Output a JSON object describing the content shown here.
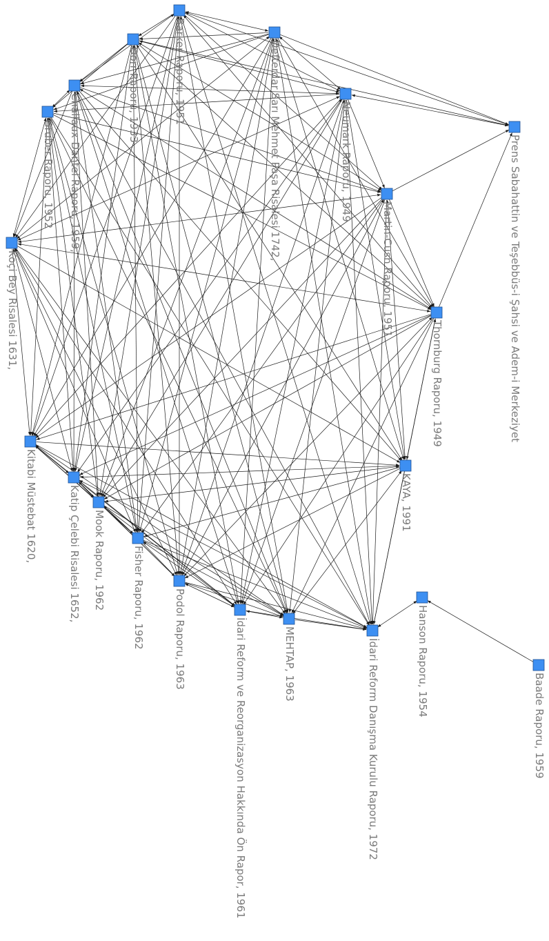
{
  "nodes": [
    {
      "id": "barker",
      "label": "Barker Raporu, 1951"
    },
    {
      "id": "defterdar",
      "label": "Defterdar Sarı Mehmet Paşa Risalesi 1742,"
    },
    {
      "id": "dorr",
      "label": "Dorr Raporu, 1933"
    },
    {
      "id": "neumark",
      "label": "Neumark Raporu, 1949"
    },
    {
      "id": "challaux",
      "label": "Challaux-Dantel Raporu, 1959,"
    },
    {
      "id": "gruber",
      "label": "Gruber Raporu, 1952"
    },
    {
      "id": "prens",
      "label": "Prens Sabahattin ve Teşebbüs-i Şahsi ve Adem-i Merkeziyet"
    },
    {
      "id": "martin",
      "label": "Martin-Cush Raporu, 1951"
    },
    {
      "id": "kocibey",
      "label": "Koçi Bey Risalesi 1631,"
    },
    {
      "id": "thornburg",
      "label": "Thornburg Raporu, 1949"
    },
    {
      "id": "kitabi",
      "label": "Kitabi Müstebat 1620,"
    },
    {
      "id": "kaya",
      "label": "KAYA, 1991"
    },
    {
      "id": "katip",
      "label": "Katip Çelebi Risalesi 1652,"
    },
    {
      "id": "mook",
      "label": "Mook Raporu, 1962"
    },
    {
      "id": "fisher",
      "label": "Fisher Raporu, 1962"
    },
    {
      "id": "podol",
      "label": "Podol Raporu, 1963"
    },
    {
      "id": "hanson",
      "label": "Hanson Raporu, 1954"
    },
    {
      "id": "idarireform1961",
      "label": "İdari Reform ve Reorganizasyon Hakkında Ön Rapor, 1961"
    },
    {
      "id": "mehtap",
      "label": "MEHTAP, 1963"
    },
    {
      "id": "idarireform1972",
      "label": "İdari Reform Danışma Kurulu Raporu, 1972"
    },
    {
      "id": "baade",
      "label": "Baade Raporu, 1959"
    }
  ],
  "colors": {
    "node_fill": "#3d8ff2",
    "node_stroke": "#1f4f91",
    "edge": "#1a1a1a",
    "label": "#7a7a7a"
  }
}
